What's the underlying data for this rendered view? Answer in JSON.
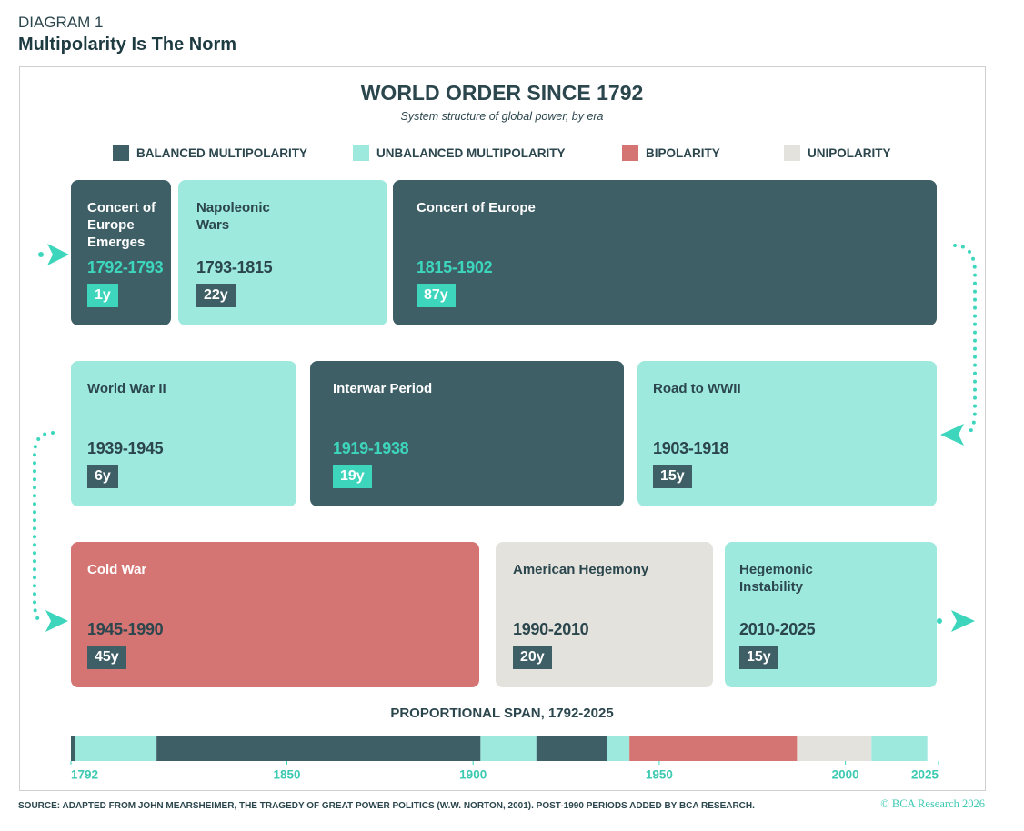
{
  "header": {
    "label": "DIAGRAM 1",
    "title": "Multipolarity Is The Norm"
  },
  "title": "WORLD ORDER SINCE 1792",
  "subtitle": "System structure of global power, by era",
  "legend": [
    {
      "label": "BALANCED MULTIPOLARITY",
      "color": "#3e5f66"
    },
    {
      "label": "UNBALANCED MULTIPOLARITY",
      "color": "#9ee9de"
    },
    {
      "label": "BIPOLARITY",
      "color": "#d57573"
    },
    {
      "label": "UNIPOLARITY",
      "color": "#e3e2dd"
    }
  ],
  "eras": [
    {
      "name": "Concert of Europe Emerges",
      "years": "1792-1793",
      "duration": "1y",
      "color": "#3e5f66"
    },
    {
      "name": "Napoleonic Wars",
      "years": "1793-1815",
      "duration": "22y",
      "color": "#9ee9de"
    },
    {
      "name": "Concert of Europe",
      "years": "1815-1902",
      "duration": "87y",
      "color": "#3e5f66"
    },
    {
      "name": "Road to WWII",
      "years": "1903-1918",
      "duration": "15y",
      "color": "#9ee9de"
    },
    {
      "name": "Interwar Period",
      "years": "1919-1938",
      "duration": "19y",
      "color": "#3e5f66"
    },
    {
      "name": "World War II",
      "years": "1939-1945",
      "duration": "6y",
      "color": "#9ee9de"
    },
    {
      "name": "Cold War",
      "years": "1945-1990",
      "duration": "45y",
      "color": "#d57573"
    },
    {
      "name": "American Hegemony",
      "years": "1990-2010",
      "duration": "20y",
      "color": "#e3e2dd"
    },
    {
      "name": "Hegemonic Instability",
      "years": "2010-2025",
      "duration": "15y",
      "color": "#9ee9de"
    }
  ],
  "span": {
    "title": "PROPORTIONAL SPAN, 1792-2025",
    "values": [
      1,
      22,
      87,
      15,
      19,
      6,
      45,
      20,
      15
    ],
    "colors": [
      "#3e5f66",
      "#9ee9de",
      "#3e5f66",
      "#9ee9de",
      "#3e5f66",
      "#9ee9de",
      "#d57573",
      "#e3e2dd",
      "#9ee9de"
    ],
    "xlim": [
      1792,
      2025
    ],
    "xticks": [
      1792,
      1850,
      1900,
      1950,
      2000,
      2025
    ]
  },
  "source": "SOURCE: ADAPTED FROM JOHN MEARSHEIMER, THE TRAGEDY OF GREAT POWER POLITICS (W.W. NORTON, 2001). POST-1990 PERIODS ADDED BY BCA RESEARCH.",
  "copyright": "© BCA Research 2026"
}
